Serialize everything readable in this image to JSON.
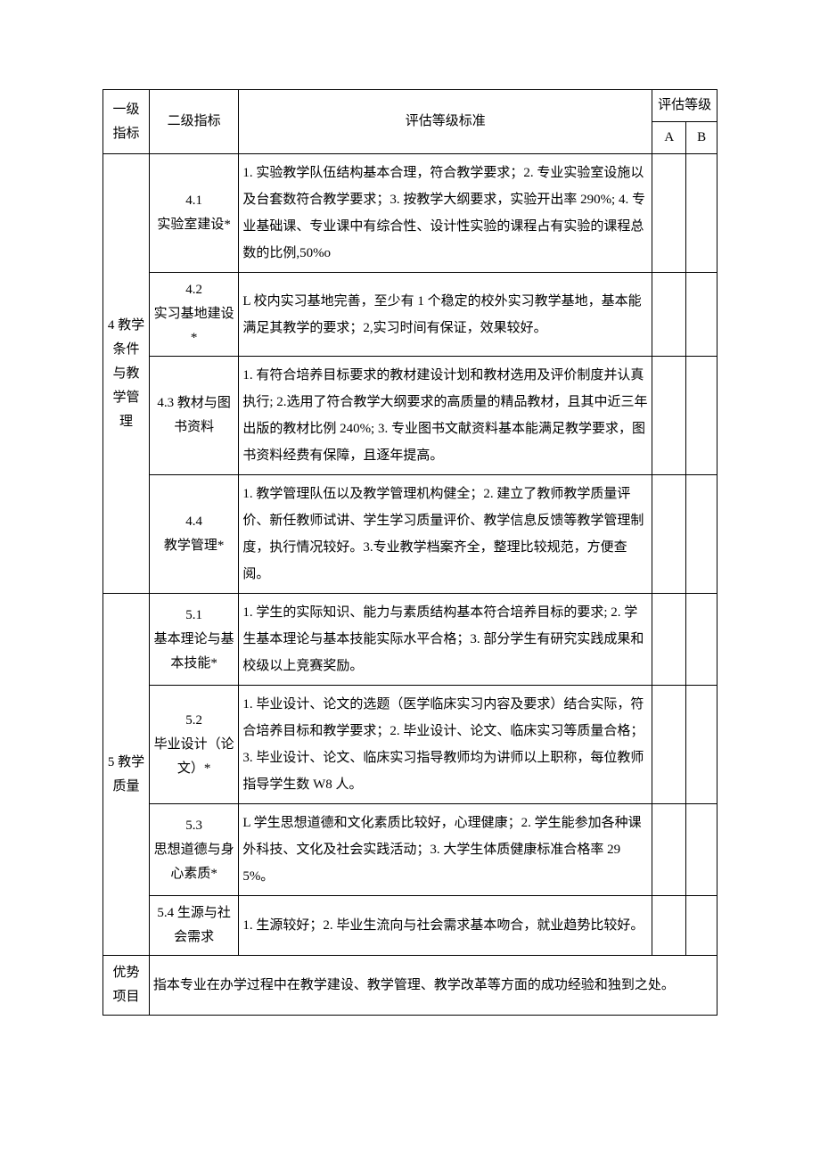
{
  "headers": {
    "level1": "一级指标",
    "level2": "二级指标",
    "standard": "评估等级标准",
    "rating": "评估等级",
    "a": "A",
    "b": "B"
  },
  "sections": [
    {
      "level1": "4 教学条件与教学管理",
      "rows": [
        {
          "level2": "4.1\n实验室建设*",
          "desc": "1. 实验教学队伍结构基本合理，符合教学要求；2. 专业实验室设施以及台套数符合教学要求；3. 按教学大纲要求，实验开出率 290%; 4. 专业基础课、专业课中有综合性、设计性实验的课程占有实验的课程总数的比例,50%o"
        },
        {
          "level2": "4.2\n实习基地建设*",
          "desc": "L 校内实习基地完善，至少有 1 个稳定的校外实习教学基地，基本能满足其教学的要求；2,实习时间有保证，效果较好。"
        },
        {
          "level2": "4.3 教材与图书资料",
          "desc": "1. 有符合培养目标要求的教材建设计划和教材选用及评价制度并认真执行; 2.选用了符合教学大纲要求的高质量的精品教材，且其中近三年出版的教材比例 240%; 3. 专业图书文献资料基本能满足教学要求，图书资料经费有保障，且逐年提高。"
        },
        {
          "level2": "4.4\n教学管理*",
          "desc": "1. 教学管理队伍以及教学管理机构健全；2. 建立了教师教学质量评价、新任教师试讲、学生学习质量评价、教学信息反馈等教学管理制度，执行情况较好。3.专业教学档案齐全，整理比较规范，方便查阅。"
        }
      ]
    },
    {
      "level1": "5 教学质量",
      "rows": [
        {
          "level2": "5.1\n基本理论与基本技能*",
          "desc": "1. 学生的实际知识、能力与素质结构基本符合培养目标的要求; 2. 学生基本理论与基本技能实际水平合格；3. 部分学生有研究实践成果和校级以上竞赛奖励。"
        },
        {
          "level2": "5.2\n毕业设计（论文）*",
          "desc": "1. 毕业设计、论文的选题（医学临床实习内容及要求）结合实际，符合培养目标和教学要求；2. 毕业设计、论文、临床实习等质量合格；3. 毕业设计、论文、临床实习指导教师均为讲师以上职称，每位教师指导学生数 W8 人。"
        },
        {
          "level2": "5.3\n思想道德与身心素质*",
          "desc": "L 学生思想道德和文化素质比较好，心理健康；2. 学生能参加各种课外科技、文化及社会实践活动；3. 大学生体质健康标准合格率 295%。"
        },
        {
          "level2": "5.4 生源与社会需求",
          "desc": "1. 生源较好；2. 毕业生流向与社会需求基本吻合，就业趋势比较好。"
        }
      ]
    }
  ],
  "advantage": {
    "label": "优势项目",
    "desc": "指本专业在办学过程中在教学建设、教学管理、教学改革等方面的成功经验和独到之处。"
  }
}
